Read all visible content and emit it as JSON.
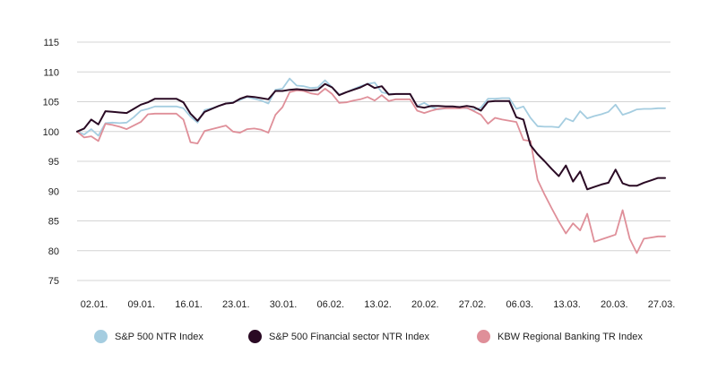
{
  "chart_data": {
    "type": "line",
    "title": "",
    "xlabel": "",
    "ylabel": "",
    "ylim": [
      75,
      115
    ],
    "yticks": [
      75,
      80,
      85,
      90,
      95,
      100,
      105,
      110,
      115
    ],
    "x_tick_labels": [
      "02.01.",
      "09.01.",
      "16.01.",
      "23.01.",
      "30.01.",
      "06.02.",
      "13.02.",
      "20.02.",
      "27.02.",
      "06.03.",
      "13.03.",
      "20.03.",
      "27.03."
    ],
    "grid": "horizontal",
    "legend_position": "bottom",
    "series": [
      {
        "name": "S&P 500 NTR Index",
        "color": "#a5cde0",
        "values": [
          100,
          99.5,
          100.4,
          99.3,
          101.4,
          101.5,
          101.4,
          101.5,
          102.4,
          103.5,
          103.8,
          104.2,
          104.2,
          104.2,
          104.2,
          103.9,
          102.5,
          101.5,
          103.6,
          103.9,
          104.3,
          104.7,
          104.9,
          105.3,
          105.8,
          105.5,
          105.2,
          104.7,
          107.0,
          107.2,
          108.9,
          107.7,
          107.6,
          107.3,
          107.4,
          108.6,
          107.4,
          106.2,
          106.6,
          107.1,
          107.6,
          108.0,
          108.2,
          106.6,
          106.3,
          106.3,
          106.3,
          106.3,
          104.3,
          104.8,
          104.1,
          103.7,
          103.9,
          104.0,
          104.0,
          103.9,
          103.6,
          104.0,
          105.5,
          105.5,
          105.6,
          105.6,
          103.8,
          104.2,
          102.3,
          100.9,
          100.8,
          100.8,
          100.7,
          102.2,
          101.7,
          103.4,
          102.2,
          102.6,
          102.9,
          103.3,
          104.5,
          102.8,
          103.2,
          103.7,
          103.8,
          103.8,
          103.9,
          103.9
        ]
      },
      {
        "name": "S&P 500 Financial sector NTR Index",
        "color": "#2a0a24",
        "values": [
          100,
          100.5,
          102.0,
          101.2,
          103.4,
          103.3,
          103.2,
          103.1,
          103.8,
          104.5,
          104.9,
          105.5,
          105.5,
          105.5,
          105.5,
          104.9,
          103.0,
          101.8,
          103.3,
          103.8,
          104.3,
          104.7,
          104.8,
          105.5,
          105.9,
          105.8,
          105.6,
          105.4,
          106.8,
          106.8,
          107.0,
          107.1,
          107.0,
          106.9,
          107.0,
          108.0,
          107.4,
          106.1,
          106.6,
          107.0,
          107.4,
          108.0,
          107.3,
          107.6,
          106.2,
          106.3,
          106.3,
          106.3,
          104.2,
          104.0,
          104.3,
          104.3,
          104.2,
          104.2,
          104.1,
          104.3,
          104.1,
          103.5,
          105.0,
          105.1,
          105.1,
          105.1,
          102.4,
          102.0,
          97.7,
          96.2,
          95.0,
          93.7,
          92.5,
          94.3,
          91.6,
          93.3,
          90.3,
          90.7,
          91.1,
          91.4,
          93.6,
          91.3,
          90.9,
          90.9,
          91.4,
          91.8,
          92.2,
          92.2
        ]
      },
      {
        "name": "KBW Regional Banking TR Index",
        "color": "#df8f99",
        "values": [
          100,
          99.0,
          99.2,
          98.4,
          101.3,
          101.1,
          100.8,
          100.4,
          101.0,
          101.6,
          102.9,
          103.0,
          103.0,
          103.0,
          103.0,
          102.0,
          98.2,
          98.0,
          100.1,
          100.4,
          100.7,
          101.0,
          100.0,
          99.8,
          100.4,
          100.5,
          100.3,
          99.8,
          102.8,
          104.1,
          106.6,
          106.9,
          106.8,
          106.4,
          106.2,
          107.2,
          106.3,
          104.8,
          104.9,
          105.2,
          105.4,
          105.8,
          105.2,
          106.1,
          105.1,
          105.4,
          105.4,
          105.4,
          103.5,
          103.1,
          103.5,
          103.8,
          103.9,
          103.9,
          103.9,
          104.0,
          103.4,
          102.8,
          101.3,
          102.3,
          102.0,
          101.8,
          101.6,
          98.6,
          98.4,
          91.9,
          89.4,
          87.1,
          84.9,
          82.9,
          84.6,
          83.4,
          86.2,
          81.5,
          81.9,
          82.3,
          82.7,
          86.8,
          82.0,
          79.6,
          82.0,
          82.2,
          82.4,
          82.4
        ]
      }
    ]
  }
}
